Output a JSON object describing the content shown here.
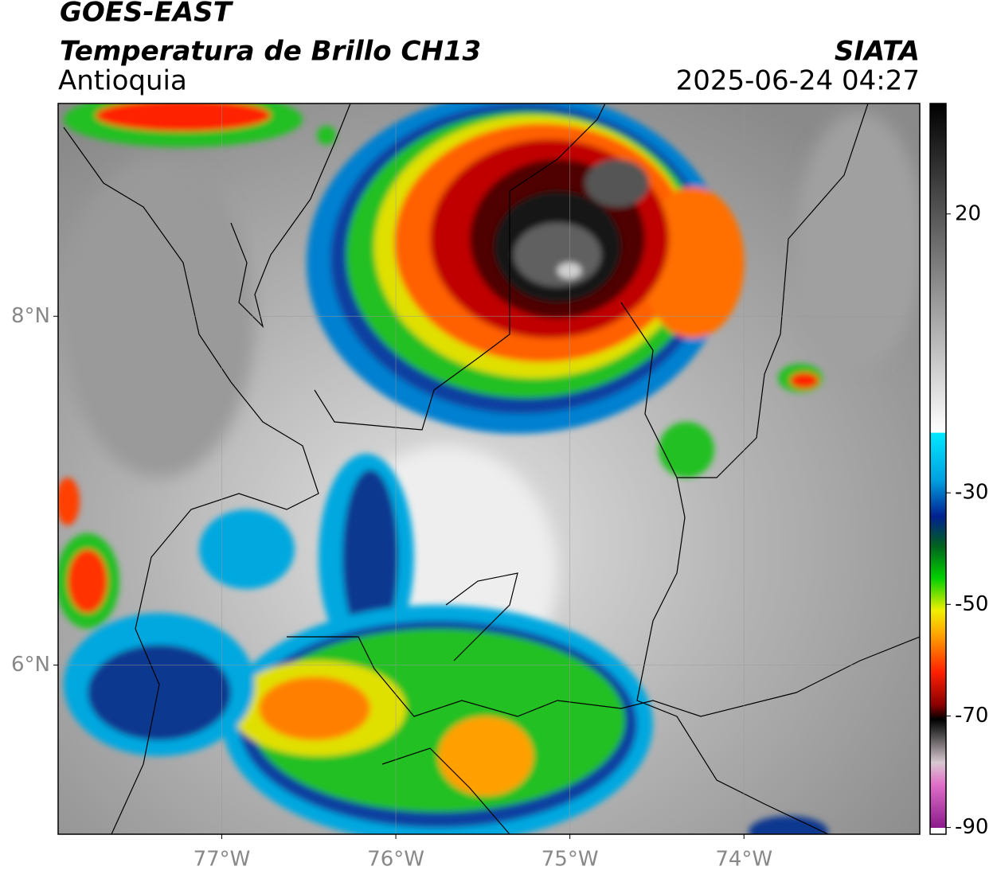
{
  "header": {
    "satellite": "GOES-EAST",
    "product": "Temperatura de Brillo CH13",
    "region": "Antioquia",
    "source": "SIATA",
    "timestamp": "2025-06-24 04:27"
  },
  "map": {
    "xlim": [
      -77.94,
      -72.99
    ],
    "ylim": [
      5.03,
      9.22
    ],
    "xticks": [
      {
        "value": -77,
        "label": "77°W"
      },
      {
        "value": -76,
        "label": "76°W"
      },
      {
        "value": -75,
        "label": "75°W"
      },
      {
        "value": -74,
        "label": "74°W"
      }
    ],
    "yticks": [
      {
        "value": 6,
        "label": "6°N"
      },
      {
        "value": 8,
        "label": "8°N"
      }
    ],
    "grid": true
  },
  "colorbar": {
    "lim": [
      -91.2,
      39.8
    ],
    "ticks": [
      20,
      -30,
      -50,
      -70,
      -90
    ]
  }
}
